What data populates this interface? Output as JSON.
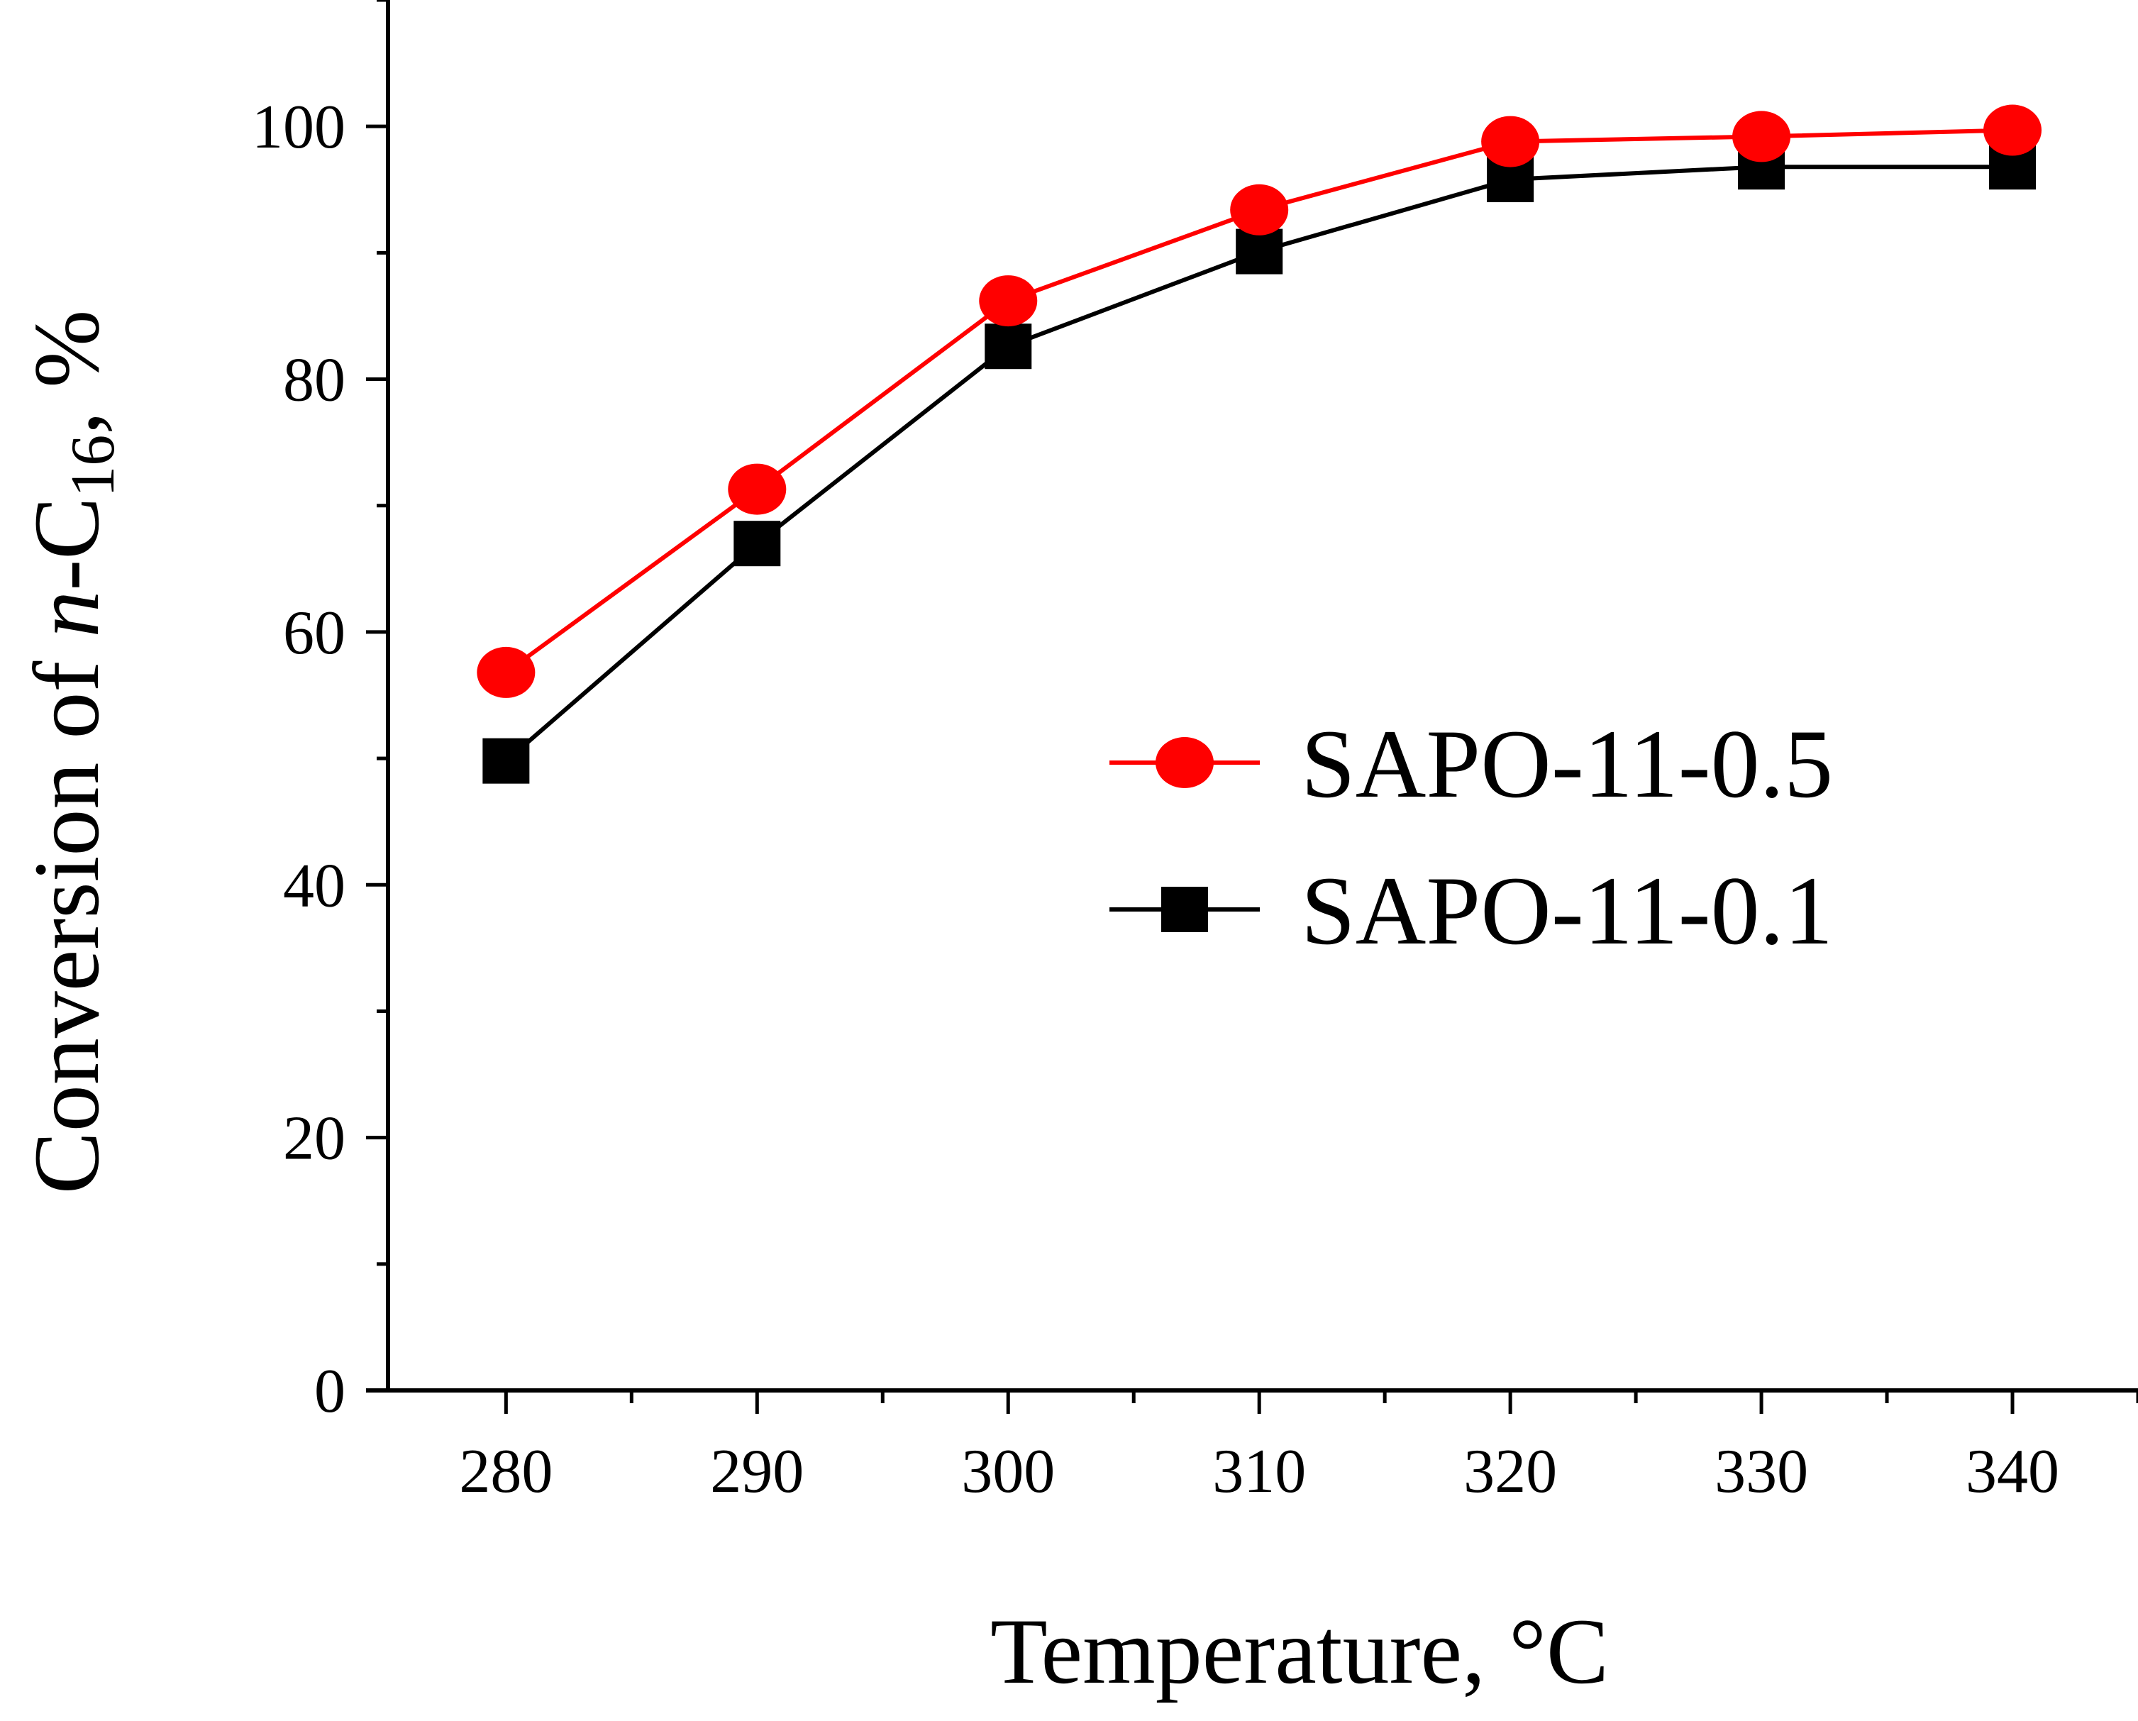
{
  "chart_data": {
    "type": "line",
    "title": "",
    "xlabel": "Temperature, °C",
    "ylabel": {
      "prefix": "Conversion of ",
      "italic": "n",
      "middle": "-C",
      "subscript": "16",
      "suffix": ", %"
    },
    "x": [
      280,
      290,
      300,
      310,
      320,
      330,
      340
    ],
    "x_ticks": [
      280,
      290,
      300,
      310,
      320,
      330,
      340
    ],
    "y_ticks": [
      0,
      20,
      40,
      60,
      80,
      100
    ],
    "xlim": [
      275.3,
      345
    ],
    "ylim": [
      0,
      110
    ],
    "grid": false,
    "legend_position": "center-right",
    "series": [
      {
        "name": "SAPO-11-0.5",
        "color": "#ff0000",
        "marker": "circle",
        "values": [
          56.8,
          71.3,
          86.2,
          93.4,
          98.8,
          99.2,
          99.7
        ]
      },
      {
        "name": "SAPO-11-0.1",
        "color": "#000000",
        "marker": "square",
        "values": [
          49.8,
          67.0,
          82.6,
          90.1,
          95.8,
          96.8,
          96.8
        ]
      }
    ]
  }
}
